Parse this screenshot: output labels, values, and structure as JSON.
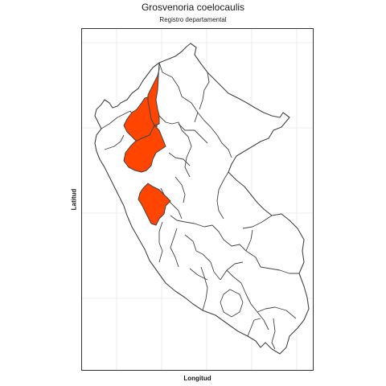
{
  "title": "Grosvenoria coelocaulis",
  "subtitle": "Registro departamental",
  "xlabel": "Longitud",
  "ylabel": "Latitud",
  "colors": {
    "highlight": "#ff4500",
    "border": "#333333",
    "grid": "#ebebeb"
  },
  "map": {
    "country": "Perú",
    "highlighted_regions": [
      "Cajamarca (norte)",
      "Cajamarca (sur)",
      "La Libertad"
    ]
  }
}
